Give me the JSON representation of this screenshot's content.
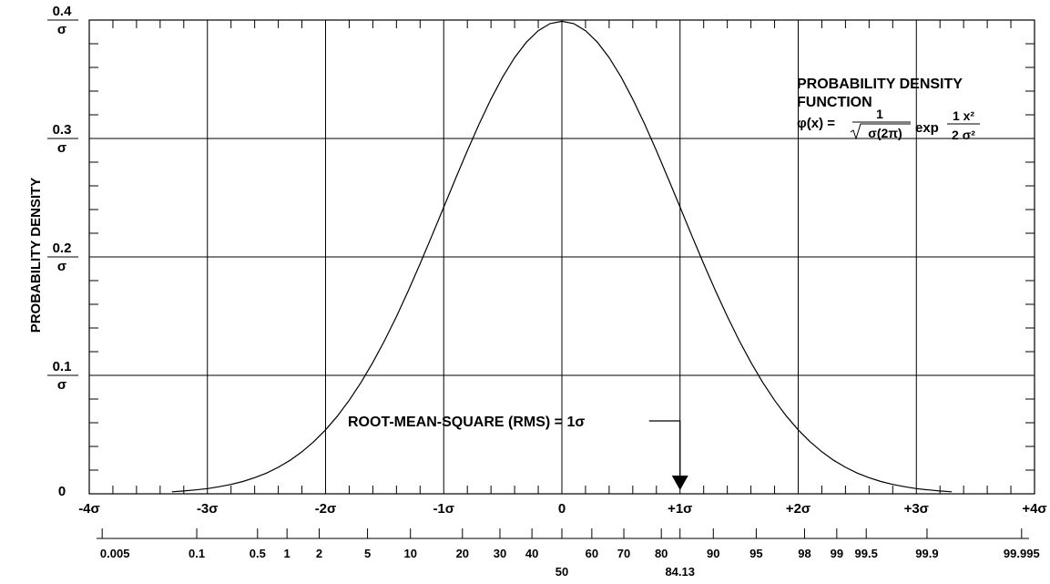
{
  "chart_data": {
    "type": "line",
    "title": "",
    "xlabel": "",
    "ylabel": "PROBABILITY DENSITY",
    "xlim": [
      -4,
      4
    ],
    "ylim": [
      0,
      0.4
    ],
    "grid": true,
    "y_ticks": [
      {
        "value": 0,
        "num": "0",
        "den": ""
      },
      {
        "value": 0.1,
        "num": "0.1",
        "den": "σ"
      },
      {
        "value": 0.2,
        "num": "0.2",
        "den": "σ"
      },
      {
        "value": 0.3,
        "num": "0.3",
        "den": "σ"
      },
      {
        "value": 0.4,
        "num": "0.4",
        "den": "σ"
      }
    ],
    "x_ticks": [
      {
        "value": -4,
        "label": "-4σ"
      },
      {
        "value": -3,
        "label": "-3σ"
      },
      {
        "value": -2,
        "label": "-2σ"
      },
      {
        "value": -1,
        "label": "-1σ"
      },
      {
        "value": 0,
        "label": "0"
      },
      {
        "value": 1,
        "label": "+1σ"
      },
      {
        "value": 2,
        "label": "+2σ"
      },
      {
        "value": 3,
        "label": "+3σ"
      },
      {
        "value": 4,
        "label": "+4σ"
      }
    ],
    "percent_scale": [
      {
        "value": 0.005,
        "label": "0.005"
      },
      {
        "value": 0.1,
        "label": "0.1"
      },
      {
        "value": 0.5,
        "label": "0.5"
      },
      {
        "value": 1,
        "label": "1"
      },
      {
        "value": 2,
        "label": "2"
      },
      {
        "value": 5,
        "label": "5"
      },
      {
        "value": 10,
        "label": "10"
      },
      {
        "value": 20,
        "label": "20"
      },
      {
        "value": 30,
        "label": "30"
      },
      {
        "value": 40,
        "label": "40"
      },
      {
        "value": 50,
        "label": "50"
      },
      {
        "value": 60,
        "label": "60"
      },
      {
        "value": 70,
        "label": "70"
      },
      {
        "value": 80,
        "label": "80"
      },
      {
        "value": 84.13,
        "label": "84.13"
      },
      {
        "value": 90,
        "label": "90"
      },
      {
        "value": 95,
        "label": "95"
      },
      {
        "value": 98,
        "label": "98"
      },
      {
        "value": 99,
        "label": "99"
      },
      {
        "value": 99.5,
        "label": "99.5"
      },
      {
        "value": 99.9,
        "label": "99.9"
      },
      {
        "value": 99.995,
        "label": "99.995"
      }
    ],
    "series": [
      {
        "name": "",
        "x": [
          -3.3,
          -3.2,
          -3.1,
          -3.0,
          -2.9,
          -2.8,
          -2.7,
          -2.6,
          -2.5,
          -2.4,
          -2.3,
          -2.2,
          -2.1,
          -2.0,
          -1.9,
          -1.8,
          -1.7,
          -1.6,
          -1.5,
          -1.4,
          -1.3,
          -1.2,
          -1.1,
          -1.0,
          -0.9,
          -0.8,
          -0.7,
          -0.6,
          -0.5,
          -0.4,
          -0.3,
          -0.2,
          -0.1,
          0.0,
          0.1,
          0.2,
          0.3,
          0.4,
          0.5,
          0.6,
          0.7,
          0.8,
          0.9,
          1.0,
          1.1,
          1.2,
          1.3,
          1.4,
          1.5,
          1.6,
          1.7,
          1.8,
          1.9,
          2.0,
          2.1,
          2.2,
          2.3,
          2.4,
          2.5,
          2.6,
          2.7,
          2.8,
          2.9,
          3.0,
          3.1,
          3.2,
          3.3
        ],
        "y": [
          0.0017,
          0.0024,
          0.0033,
          0.0044,
          0.006,
          0.0079,
          0.0104,
          0.0136,
          0.0175,
          0.0224,
          0.0283,
          0.0355,
          0.044,
          0.054,
          0.0656,
          0.079,
          0.094,
          0.1109,
          0.1295,
          0.1497,
          0.1714,
          0.1942,
          0.2179,
          0.242,
          0.2661,
          0.2897,
          0.3123,
          0.3332,
          0.3521,
          0.3683,
          0.3814,
          0.391,
          0.397,
          0.3989,
          0.397,
          0.391,
          0.3814,
          0.3683,
          0.3521,
          0.3332,
          0.3123,
          0.2897,
          0.2661,
          0.242,
          0.2179,
          0.1942,
          0.1714,
          0.1497,
          0.1295,
          0.1109,
          0.094,
          0.079,
          0.0656,
          0.054,
          0.044,
          0.0355,
          0.0283,
          0.0224,
          0.0175,
          0.0136,
          0.0104,
          0.0079,
          0.006,
          0.0044,
          0.0033,
          0.0024,
          0.0017
        ]
      }
    ],
    "annotations": {
      "pdf_title": [
        "PROBABILITY DENSITY",
        "FUNCTION"
      ],
      "formula_lhs": "φ(x) =",
      "formula_num": "1",
      "formula_den": "σ(2π)",
      "formula_exp": "exp",
      "formula_exp_num": "1 x²",
      "formula_exp_den": "2 σ²",
      "rms_label": "ROOT-MEAN-SQUARE (RMS) = 1σ",
      "rms_x": 1
    }
  }
}
